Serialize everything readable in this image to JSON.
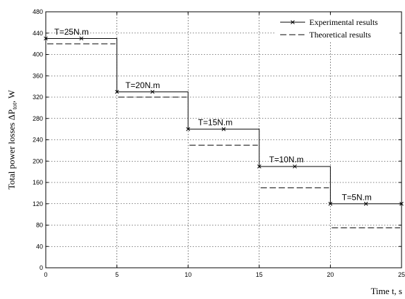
{
  "chart_data": {
    "type": "line",
    "title": "",
    "xlabel": "Time t, s",
    "ylabel": "Total power losses ΔP",
    "ylabel_sub": "tot",
    "ylabel_unit": ", W",
    "xlim": [
      0,
      25
    ],
    "ylim": [
      0,
      480
    ],
    "xticks": [
      0,
      5,
      10,
      15,
      20,
      25
    ],
    "yticks": [
      0,
      40,
      80,
      120,
      160,
      200,
      240,
      280,
      320,
      360,
      400,
      440,
      480
    ],
    "grid": true,
    "legend_position": "top-right",
    "series": [
      {
        "name": "Experimental results",
        "style": "solid-with-x-markers",
        "x": [
          0,
          5,
          5,
          10,
          10,
          15,
          15,
          20,
          20,
          25
        ],
        "y": [
          430,
          430,
          330,
          330,
          260,
          260,
          190,
          190,
          120,
          120
        ],
        "markers_x": [
          0,
          2.5,
          5,
          7.5,
          10,
          12.5,
          15,
          17.5,
          20,
          22.5,
          25
        ],
        "markers_y": [
          430,
          430,
          330,
          330,
          260,
          260,
          190,
          190,
          120,
          120,
          120
        ]
      },
      {
        "name": "Theoretical results",
        "style": "dashed",
        "segments": [
          {
            "x": [
              0,
              5
            ],
            "y": 420
          },
          {
            "x": [
              5,
              10
            ],
            "y": 320
          },
          {
            "x": [
              10,
              15
            ],
            "y": 230
          },
          {
            "x": [
              15,
              20
            ],
            "y": 150
          },
          {
            "x": [
              20,
              25
            ],
            "y": 75
          }
        ]
      }
    ],
    "annotations": [
      {
        "text": "T=25N.m",
        "x": 0.6,
        "y": 437
      },
      {
        "text": "T=20N.m",
        "x": 5.6,
        "y": 337
      },
      {
        "text": "T=15N.m",
        "x": 10.7,
        "y": 267
      },
      {
        "text": "T=10N.m",
        "x": 15.7,
        "y": 198
      },
      {
        "text": "T=5N.m",
        "x": 20.8,
        "y": 127
      }
    ]
  }
}
